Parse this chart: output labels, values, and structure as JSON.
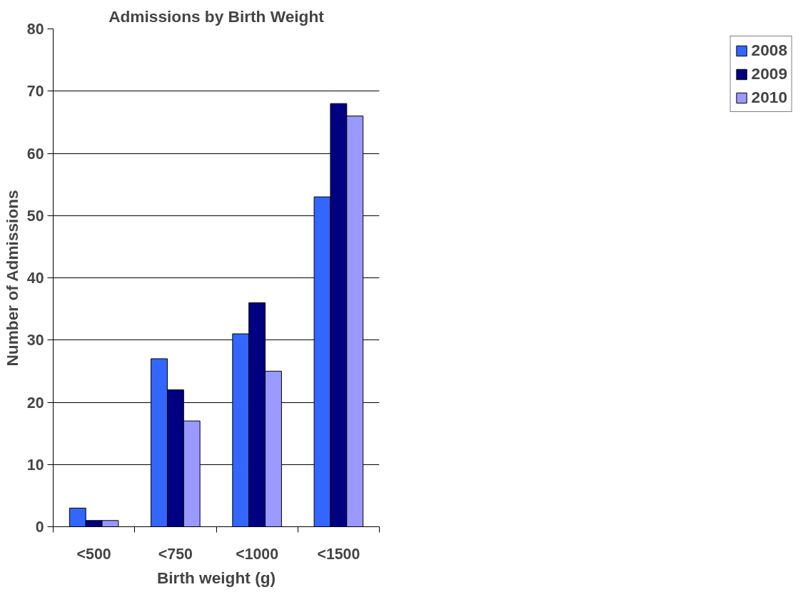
{
  "chart_data": {
    "type": "bar",
    "title": "Admissions by Birth Weight",
    "xlabel": "Birth weight (g)",
    "ylabel": "Number of Admissions",
    "categories": [
      "<500",
      "<750",
      "<1000",
      "<1500"
    ],
    "series": [
      {
        "name": "2008",
        "color": "#3366ff",
        "values": [
          3,
          27,
          31,
          53
        ]
      },
      {
        "name": "2009",
        "color": "#000080",
        "values": [
          1,
          22,
          36,
          68
        ]
      },
      {
        "name": "2010",
        "color": "#9999ff",
        "values": [
          1,
          17,
          25,
          66
        ]
      }
    ],
    "ylim": [
      0,
      80
    ],
    "yticks": [
      0,
      10,
      20,
      30,
      40,
      50,
      60,
      70,
      80
    ],
    "grid": "y",
    "legend": "right"
  }
}
